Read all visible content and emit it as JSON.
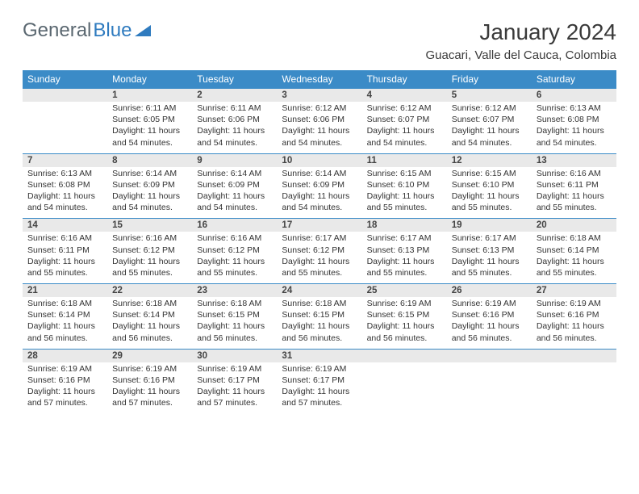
{
  "logo": {
    "text1": "General",
    "text2": "Blue",
    "color1": "#5a6770",
    "color2": "#2f7bbf"
  },
  "title": "January 2024",
  "location": "Guacari, Valle del Cauca, Colombia",
  "header_bg": "#3b8bc7",
  "header_fg": "#ffffff",
  "daynum_bg": "#e9e9e9",
  "border_color": "#3b8bc7",
  "weekdays": [
    "Sunday",
    "Monday",
    "Tuesday",
    "Wednesday",
    "Thursday",
    "Friday",
    "Saturday"
  ],
  "weeks": [
    [
      null,
      {
        "n": "1",
        "sr": "Sunrise: 6:11 AM",
        "ss": "Sunset: 6:05 PM",
        "d1": "Daylight: 11 hours",
        "d2": "and 54 minutes."
      },
      {
        "n": "2",
        "sr": "Sunrise: 6:11 AM",
        "ss": "Sunset: 6:06 PM",
        "d1": "Daylight: 11 hours",
        "d2": "and 54 minutes."
      },
      {
        "n": "3",
        "sr": "Sunrise: 6:12 AM",
        "ss": "Sunset: 6:06 PM",
        "d1": "Daylight: 11 hours",
        "d2": "and 54 minutes."
      },
      {
        "n": "4",
        "sr": "Sunrise: 6:12 AM",
        "ss": "Sunset: 6:07 PM",
        "d1": "Daylight: 11 hours",
        "d2": "and 54 minutes."
      },
      {
        "n": "5",
        "sr": "Sunrise: 6:12 AM",
        "ss": "Sunset: 6:07 PM",
        "d1": "Daylight: 11 hours",
        "d2": "and 54 minutes."
      },
      {
        "n": "6",
        "sr": "Sunrise: 6:13 AM",
        "ss": "Sunset: 6:08 PM",
        "d1": "Daylight: 11 hours",
        "d2": "and 54 minutes."
      }
    ],
    [
      {
        "n": "7",
        "sr": "Sunrise: 6:13 AM",
        "ss": "Sunset: 6:08 PM",
        "d1": "Daylight: 11 hours",
        "d2": "and 54 minutes."
      },
      {
        "n": "8",
        "sr": "Sunrise: 6:14 AM",
        "ss": "Sunset: 6:09 PM",
        "d1": "Daylight: 11 hours",
        "d2": "and 54 minutes."
      },
      {
        "n": "9",
        "sr": "Sunrise: 6:14 AM",
        "ss": "Sunset: 6:09 PM",
        "d1": "Daylight: 11 hours",
        "d2": "and 54 minutes."
      },
      {
        "n": "10",
        "sr": "Sunrise: 6:14 AM",
        "ss": "Sunset: 6:09 PM",
        "d1": "Daylight: 11 hours",
        "d2": "and 54 minutes."
      },
      {
        "n": "11",
        "sr": "Sunrise: 6:15 AM",
        "ss": "Sunset: 6:10 PM",
        "d1": "Daylight: 11 hours",
        "d2": "and 55 minutes."
      },
      {
        "n": "12",
        "sr": "Sunrise: 6:15 AM",
        "ss": "Sunset: 6:10 PM",
        "d1": "Daylight: 11 hours",
        "d2": "and 55 minutes."
      },
      {
        "n": "13",
        "sr": "Sunrise: 6:16 AM",
        "ss": "Sunset: 6:11 PM",
        "d1": "Daylight: 11 hours",
        "d2": "and 55 minutes."
      }
    ],
    [
      {
        "n": "14",
        "sr": "Sunrise: 6:16 AM",
        "ss": "Sunset: 6:11 PM",
        "d1": "Daylight: 11 hours",
        "d2": "and 55 minutes."
      },
      {
        "n": "15",
        "sr": "Sunrise: 6:16 AM",
        "ss": "Sunset: 6:12 PM",
        "d1": "Daylight: 11 hours",
        "d2": "and 55 minutes."
      },
      {
        "n": "16",
        "sr": "Sunrise: 6:16 AM",
        "ss": "Sunset: 6:12 PM",
        "d1": "Daylight: 11 hours",
        "d2": "and 55 minutes."
      },
      {
        "n": "17",
        "sr": "Sunrise: 6:17 AM",
        "ss": "Sunset: 6:12 PM",
        "d1": "Daylight: 11 hours",
        "d2": "and 55 minutes."
      },
      {
        "n": "18",
        "sr": "Sunrise: 6:17 AM",
        "ss": "Sunset: 6:13 PM",
        "d1": "Daylight: 11 hours",
        "d2": "and 55 minutes."
      },
      {
        "n": "19",
        "sr": "Sunrise: 6:17 AM",
        "ss": "Sunset: 6:13 PM",
        "d1": "Daylight: 11 hours",
        "d2": "and 55 minutes."
      },
      {
        "n": "20",
        "sr": "Sunrise: 6:18 AM",
        "ss": "Sunset: 6:14 PM",
        "d1": "Daylight: 11 hours",
        "d2": "and 55 minutes."
      }
    ],
    [
      {
        "n": "21",
        "sr": "Sunrise: 6:18 AM",
        "ss": "Sunset: 6:14 PM",
        "d1": "Daylight: 11 hours",
        "d2": "and 56 minutes."
      },
      {
        "n": "22",
        "sr": "Sunrise: 6:18 AM",
        "ss": "Sunset: 6:14 PM",
        "d1": "Daylight: 11 hours",
        "d2": "and 56 minutes."
      },
      {
        "n": "23",
        "sr": "Sunrise: 6:18 AM",
        "ss": "Sunset: 6:15 PM",
        "d1": "Daylight: 11 hours",
        "d2": "and 56 minutes."
      },
      {
        "n": "24",
        "sr": "Sunrise: 6:18 AM",
        "ss": "Sunset: 6:15 PM",
        "d1": "Daylight: 11 hours",
        "d2": "and 56 minutes."
      },
      {
        "n": "25",
        "sr": "Sunrise: 6:19 AM",
        "ss": "Sunset: 6:15 PM",
        "d1": "Daylight: 11 hours",
        "d2": "and 56 minutes."
      },
      {
        "n": "26",
        "sr": "Sunrise: 6:19 AM",
        "ss": "Sunset: 6:16 PM",
        "d1": "Daylight: 11 hours",
        "d2": "and 56 minutes."
      },
      {
        "n": "27",
        "sr": "Sunrise: 6:19 AM",
        "ss": "Sunset: 6:16 PM",
        "d1": "Daylight: 11 hours",
        "d2": "and 56 minutes."
      }
    ],
    [
      {
        "n": "28",
        "sr": "Sunrise: 6:19 AM",
        "ss": "Sunset: 6:16 PM",
        "d1": "Daylight: 11 hours",
        "d2": "and 57 minutes."
      },
      {
        "n": "29",
        "sr": "Sunrise: 6:19 AM",
        "ss": "Sunset: 6:16 PM",
        "d1": "Daylight: 11 hours",
        "d2": "and 57 minutes."
      },
      {
        "n": "30",
        "sr": "Sunrise: 6:19 AM",
        "ss": "Sunset: 6:17 PM",
        "d1": "Daylight: 11 hours",
        "d2": "and 57 minutes."
      },
      {
        "n": "31",
        "sr": "Sunrise: 6:19 AM",
        "ss": "Sunset: 6:17 PM",
        "d1": "Daylight: 11 hours",
        "d2": "and 57 minutes."
      },
      null,
      null,
      null
    ]
  ]
}
